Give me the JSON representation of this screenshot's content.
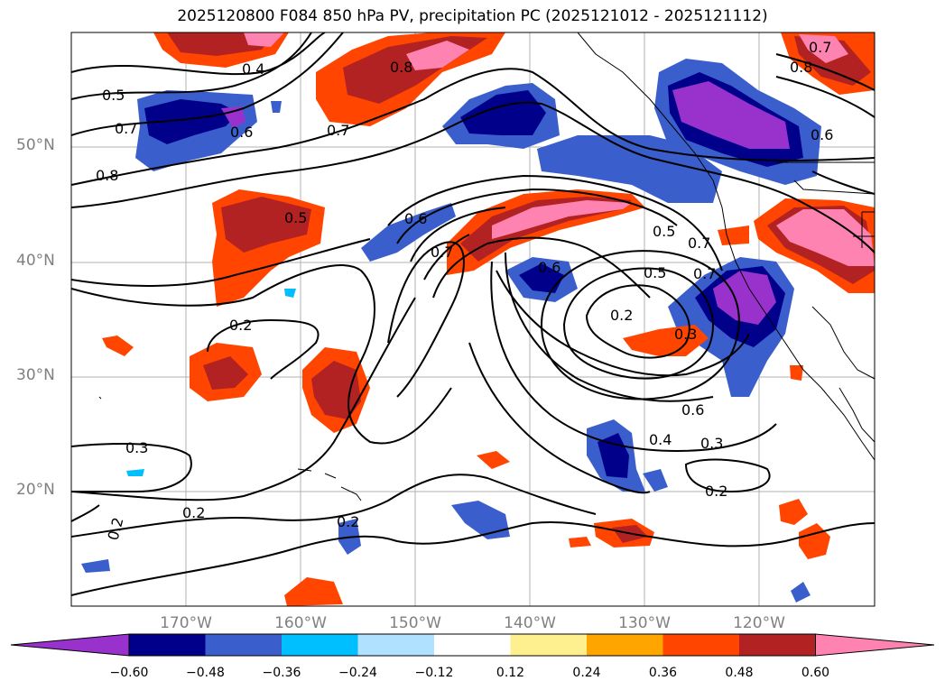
{
  "title": "2025120800 F084 850 hPa PV, precipitation PC (2025121012 - 2025121112)",
  "lat_labels": [
    "50°N",
    "40°N",
    "30°N",
    "20°N"
  ],
  "lon_labels": [
    "170°W",
    "160°W",
    "150°W",
    "140°W",
    "130°W",
    "120°W"
  ],
  "colorbar": {
    "ticks": [
      "−0.60",
      "−0.48",
      "−0.36",
      "−0.24",
      "−0.12",
      "0.12",
      "0.24",
      "0.36",
      "0.48",
      "0.60"
    ],
    "colors": [
      "#9932cc",
      "#00008b",
      "#3a5fcd",
      "#00bfff",
      "#b0e2ff",
      "#ffffff",
      "#fff08f",
      "#ffa500",
      "#ff4500",
      "#b22222",
      "#ff83b0"
    ]
  },
  "contour_labels": [
    "0.4",
    "0.5",
    "0.7",
    "0.8",
    "0.6",
    "0.7",
    "0.5",
    "0.6",
    "0.7",
    "0.6",
    "0.7",
    "0.5",
    "0.7",
    "0.5",
    "0.2",
    "0.3",
    "0.6",
    "0.4",
    "0.3",
    "0.2",
    "0.3",
    "0.2",
    "0.2",
    "0.2",
    "0.8",
    "0.6",
    "0.7",
    "0.8"
  ]
}
